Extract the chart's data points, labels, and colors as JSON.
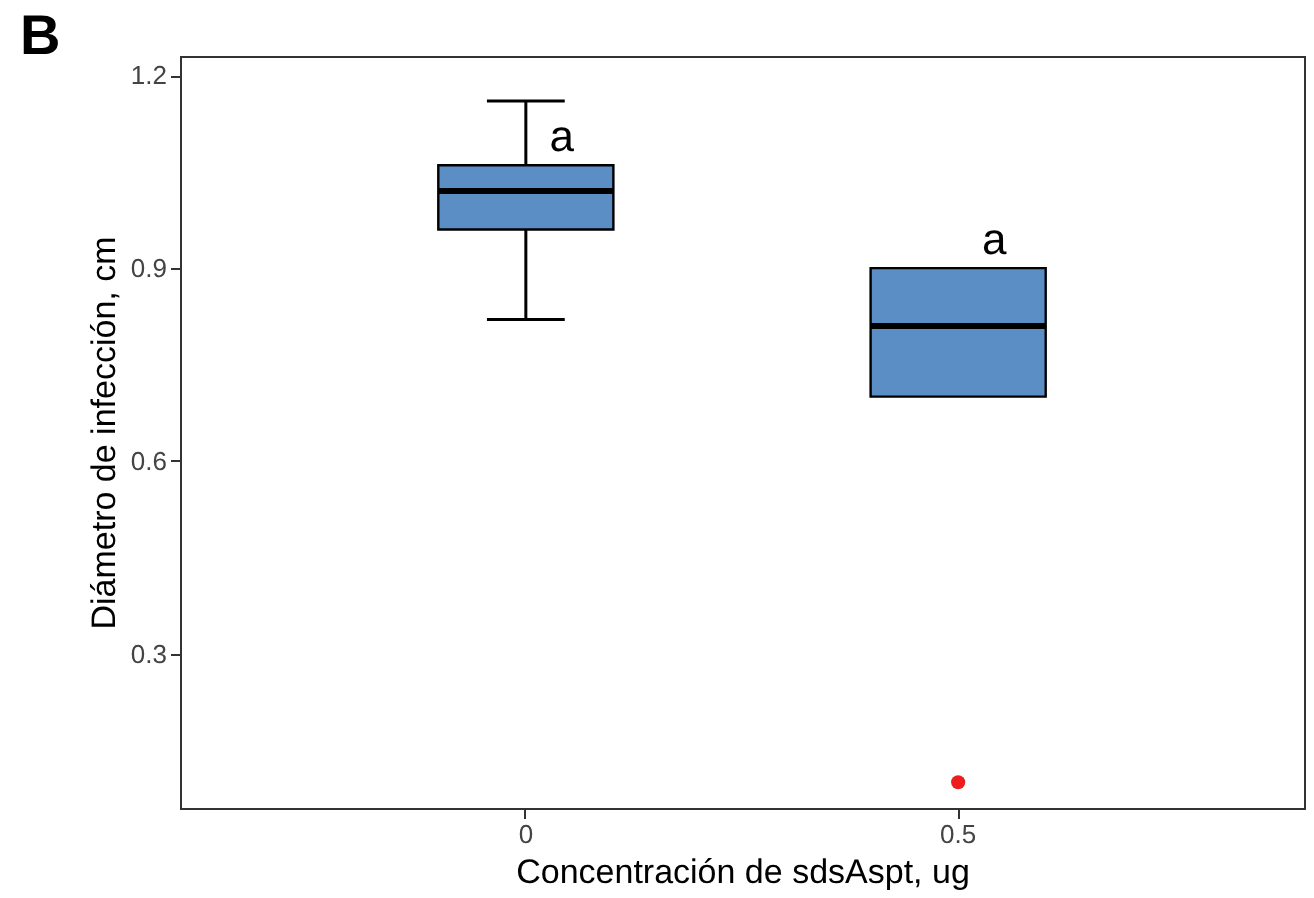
{
  "chart_data": {
    "type": "box",
    "title": "B",
    "xlabel": "Concentración de sdsAspt, ug",
    "ylabel": "Diámetro de infección, cm",
    "categories": [
      "0",
      "0.5"
    ],
    "boxes": [
      {
        "low": 0.82,
        "q1": 0.96,
        "median": 1.02,
        "q3": 1.06,
        "high": 1.16
      },
      {
        "low": 0.7,
        "q1": 0.7,
        "median": 0.81,
        "q3": 0.9,
        "high": 0.9
      }
    ],
    "color": "#5b8ec4",
    "series": [
      {
        "type": "scatter",
        "x": [
          "0.5"
        ],
        "values": [
          0.1
        ],
        "color": "#ee1c1c"
      }
    ],
    "ylim": [
      0.06,
      1.23
    ],
    "yticks": [
      0.3,
      0.6,
      0.9,
      1.2
    ],
    "grid": false,
    "annotations": [
      "a",
      "a"
    ]
  }
}
